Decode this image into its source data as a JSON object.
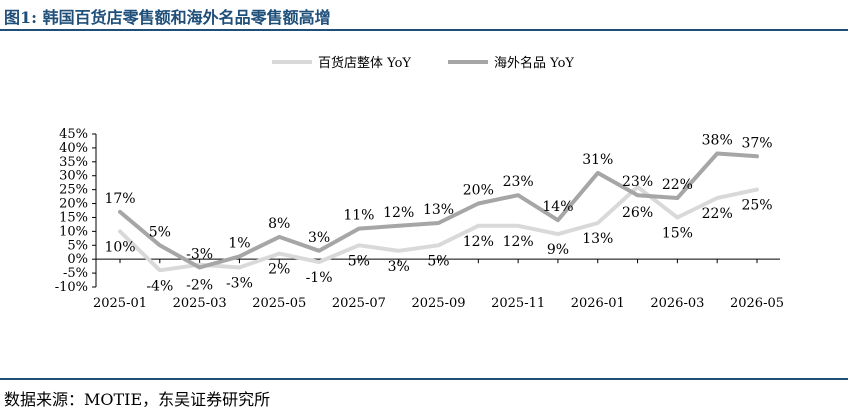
{
  "figure": {
    "title": "图1:  韩国百货店零售额和海外名品零售额高增",
    "source": "数据来源：MOTIE，东吴证券研究所"
  },
  "colors": {
    "title_blue": "#1f4e79",
    "series_overall": "#d9d9d9",
    "series_luxury": "#a6a6a6",
    "axis": "#000000"
  },
  "chart_data": {
    "type": "line",
    "x": [
      "2025-01",
      "2025-02",
      "2025-03",
      "2025-04",
      "2025-05",
      "2025-06",
      "2025-07",
      "2025-08",
      "2025-09",
      "2025-10",
      "2025-11",
      "2025-12",
      "2026-01",
      "2026-02",
      "2026-03",
      "2026-04",
      "2026-05"
    ],
    "x_tick_labels": [
      "2025-01",
      "2025-03",
      "2025-05",
      "2025-07",
      "2025-09",
      "2025-11",
      "2026-01",
      "2026-03",
      "2026-05"
    ],
    "y_tick_labels": [
      "-10%",
      "-5%",
      "0%",
      "5%",
      "10%",
      "15%",
      "20%",
      "25%",
      "30%",
      "35%",
      "40%",
      "45%"
    ],
    "ylim": [
      -10,
      45
    ],
    "y_unit": "%",
    "grid": false,
    "legend_position": "top-center",
    "series": [
      {
        "name": "百货店整体 YoY",
        "color": "#d9d9d9",
        "values": [
          10,
          -4,
          -2,
          -3,
          2,
          -1,
          5,
          3,
          5,
          12,
          12,
          9,
          13,
          26,
          15,
          22,
          25
        ],
        "data_labels": [
          "10%",
          "-4%",
          "-2%",
          "-3%",
          "2%",
          "-1%",
          "5%",
          "3%",
          "5%",
          "12%",
          "12%",
          "9%",
          "13%",
          "26%",
          "15%",
          "22%",
          "25%"
        ]
      },
      {
        "name": "海外名品 YoY",
        "color": "#a6a6a6",
        "values": [
          17,
          5,
          -3,
          1,
          8,
          3,
          11,
          12,
          13,
          20,
          23,
          14,
          31,
          23,
          22,
          38,
          37
        ],
        "data_labels": [
          "17%",
          "5%",
          "-3%",
          "1%",
          "8%",
          "3%",
          "11%",
          "12%",
          "13%",
          "20%",
          "23%",
          "14%",
          "31%",
          "23%",
          "22%",
          "38%",
          "37%"
        ]
      }
    ]
  }
}
